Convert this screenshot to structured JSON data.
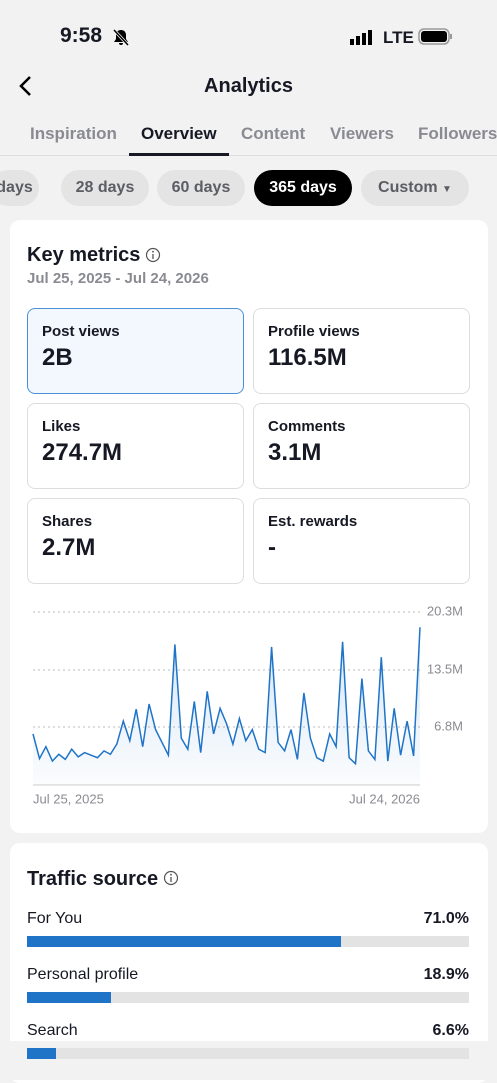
{
  "status": {
    "time": "9:58",
    "network": "LTE"
  },
  "header": {
    "title": "Analytics"
  },
  "tabs": {
    "items": [
      "Inspiration",
      "Overview",
      "Content",
      "Viewers",
      "Followers"
    ],
    "active": 1
  },
  "periods": {
    "items": [
      "days",
      "28 days",
      "60 days",
      "365 days",
      "Custom"
    ],
    "active": 3
  },
  "key_metrics": {
    "title": "Key metrics",
    "date_range": "Jul 25, 2025 - Jul 24, 2026",
    "metrics": [
      {
        "label": "Post views",
        "value": "2B"
      },
      {
        "label": "Profile views",
        "value": "116.5M"
      },
      {
        "label": "Likes",
        "value": "274.7M"
      },
      {
        "label": "Comments",
        "value": "3.1M"
      },
      {
        "label": "Shares",
        "value": "2.7M"
      },
      {
        "label": "Est. rewards",
        "value": "-"
      }
    ],
    "selected": 0
  },
  "chart_data": {
    "type": "line",
    "color": "#1f74c8",
    "x": [
      "Jul 25, 2025",
      null,
      null,
      null,
      null,
      null,
      null,
      null,
      null,
      null,
      null,
      null,
      null,
      null,
      null,
      null,
      null,
      null,
      null,
      null,
      null,
      null,
      null,
      null,
      null,
      null,
      null,
      null,
      null,
      null,
      null,
      null,
      null,
      null,
      null,
      null,
      null,
      null,
      null,
      null,
      null,
      null,
      null,
      null,
      null,
      null,
      null,
      null,
      null,
      null,
      null,
      null,
      null,
      null,
      null,
      null,
      null,
      null,
      null,
      null,
      "Jul 24, 2026"
    ],
    "values": [
      6.0,
      3.1,
      4.5,
      2.8,
      3.6,
      3.0,
      4.2,
      3.3,
      3.8,
      3.5,
      3.2,
      4.0,
      3.6,
      4.8,
      7.5,
      5.2,
      8.9,
      4.5,
      9.5,
      6.5,
      5.0,
      3.5,
      16.5,
      5.5,
      4.2,
      9.8,
      3.8,
      11.0,
      6.0,
      9.0,
      7.2,
      4.8,
      7.8,
      5.2,
      6.5,
      4.2,
      3.8,
      16.2,
      5.0,
      4.0,
      6.5,
      3.0,
      10.8,
      5.5,
      3.2,
      2.8,
      6.0,
      4.5,
      16.8,
      3.2,
      2.5,
      12.5,
      4.0,
      3.0,
      15.0,
      2.8,
      9.0,
      3.5,
      7.5,
      3.4,
      18.5
    ],
    "ylim": [
      0,
      20.3
    ],
    "yticks": [
      {
        "value": 6.8,
        "label": "6.8M"
      },
      {
        "value": 13.5,
        "label": "13.5M"
      },
      {
        "value": 20.3,
        "label": "20.3M"
      }
    ],
    "grid": true
  },
  "traffic_source": {
    "title": "Traffic source",
    "xlim": [
      0,
      100
    ],
    "items": [
      {
        "label": "For You",
        "value": 71.0,
        "value_label": "71.0%"
      },
      {
        "label": "Personal profile",
        "value": 18.9,
        "value_label": "18.9%"
      },
      {
        "label": "Search",
        "value": 6.6,
        "value_label": "6.6%"
      }
    ]
  }
}
